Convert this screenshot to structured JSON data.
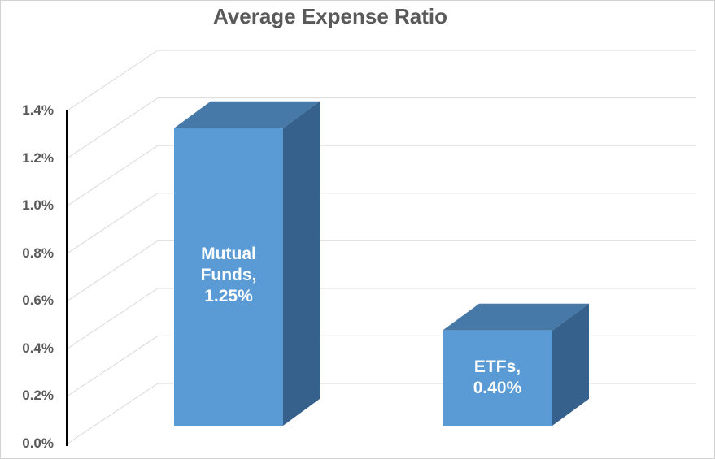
{
  "chart_data": {
    "type": "bar",
    "style": "3d",
    "title": "Average Expense Ratio",
    "categories": [
      "Mutual Funds",
      "ETFs"
    ],
    "values": [
      1.25,
      0.4
    ],
    "value_unit": "%",
    "data_labels": [
      "Mutual Funds, 1.25%",
      "ETFs, 0.40%"
    ],
    "label_lines": [
      [
        "Mutual",
        "Funds,",
        "1.25%"
      ],
      [
        "ETFs,",
        "0.40%"
      ]
    ],
    "xlabel": "",
    "ylabel": "",
    "ylim": [
      0,
      1.4
    ],
    "ytick_step": 0.2,
    "yticks": [
      "0.0%",
      "0.2%",
      "0.4%",
      "0.6%",
      "0.8%",
      "1.0%",
      "1.2%",
      "1.4%"
    ],
    "legend": "none",
    "grid": true,
    "colors": {
      "bar_front": "#5B9BD5",
      "bar_top": "#4779A8",
      "bar_side": "#35618C",
      "title_text": "#595959",
      "tick_text": "#595959",
      "data_label_text": "#FFFFFF",
      "gridline": "#D9D9D9",
      "axis_line": "#000000",
      "background": "#FFFFFF",
      "border": "#D2D2D2"
    }
  }
}
